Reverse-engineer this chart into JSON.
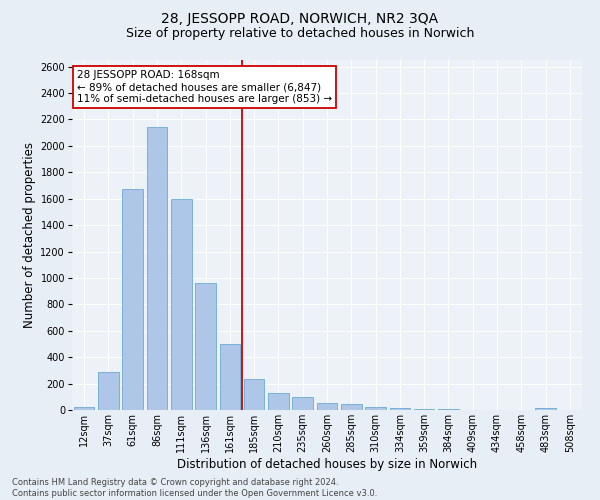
{
  "title": "28, JESSOPP ROAD, NORWICH, NR2 3QA",
  "subtitle": "Size of property relative to detached houses in Norwich",
  "xlabel": "Distribution of detached houses by size in Norwich",
  "ylabel": "Number of detached properties",
  "footnote1": "Contains HM Land Registry data © Crown copyright and database right 2024.",
  "footnote2": "Contains public sector information licensed under the Open Government Licence v3.0.",
  "bar_labels": [
    "12sqm",
    "37sqm",
    "61sqm",
    "86sqm",
    "111sqm",
    "136sqm",
    "161sqm",
    "185sqm",
    "210sqm",
    "235sqm",
    "260sqm",
    "285sqm",
    "310sqm",
    "334sqm",
    "359sqm",
    "384sqm",
    "409sqm",
    "434sqm",
    "458sqm",
    "483sqm",
    "508sqm"
  ],
  "bar_values": [
    20,
    290,
    1670,
    2145,
    1600,
    965,
    500,
    235,
    125,
    100,
    55,
    45,
    20,
    15,
    10,
    5,
    3,
    2,
    0,
    15,
    0
  ],
  "bar_color": "#aec6e8",
  "bar_edge_color": "#6aaad4",
  "vline_color": "#cc0000",
  "annotation_text": "28 JESSOPP ROAD: 168sqm\n← 89% of detached houses are smaller (6,847)\n11% of semi-detached houses are larger (853) →",
  "annotation_box_color": "#cc0000",
  "ylim": [
    0,
    2650
  ],
  "yticks": [
    0,
    200,
    400,
    600,
    800,
    1000,
    1200,
    1400,
    1600,
    1800,
    2000,
    2200,
    2400,
    2600
  ],
  "bg_color": "#e8eef5",
  "plot_bg_color": "#e8eef5",
  "inner_plot_bg": "#edf2f8",
  "grid_color": "#ffffff",
  "title_fontsize": 10,
  "subtitle_fontsize": 9,
  "axis_label_fontsize": 8.5,
  "tick_fontsize": 7,
  "annotation_fontsize": 7.5,
  "footnote_fontsize": 6,
  "vline_pos": 6.5
}
